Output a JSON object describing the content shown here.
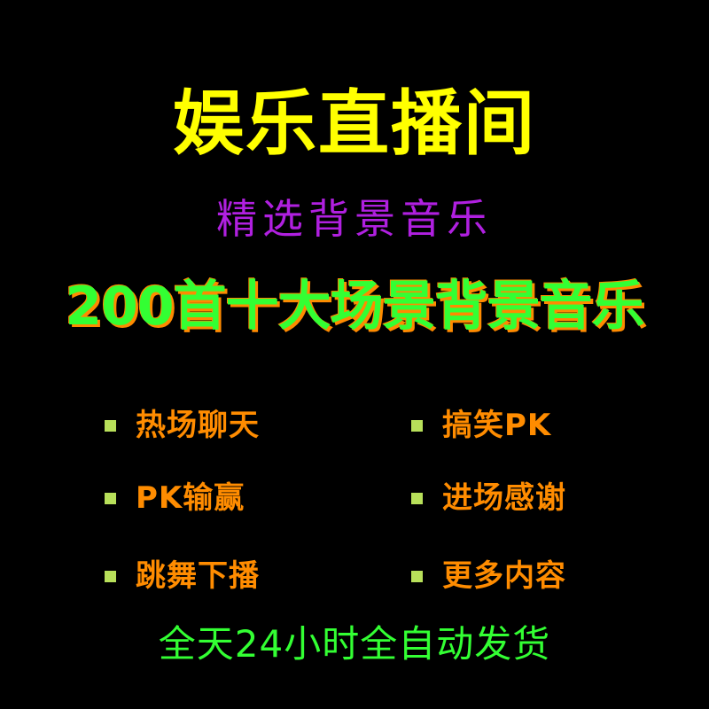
{
  "title": "娱乐直播间",
  "subtitle": "精选背景音乐",
  "headline": "200首十大场景背景音乐",
  "items": [
    {
      "label": "热场聊天"
    },
    {
      "label": "搞笑PK"
    },
    {
      "label": "PK输赢"
    },
    {
      "label": "进场感谢"
    },
    {
      "label": "跳舞下播"
    },
    {
      "label": "更多内容"
    }
  ],
  "footer": "全天24小时全自动发货",
  "colors": {
    "background": "#000000",
    "title": "#ffff00",
    "subtitle": "#b020e0",
    "headline": "#33ff33",
    "headline_shadow": "#ff8a00",
    "item_text": "#ff8c00",
    "bullet": "#b8e05a",
    "footer": "#33ff33"
  },
  "icons": {
    "bullet": "square-bullet-icon"
  }
}
